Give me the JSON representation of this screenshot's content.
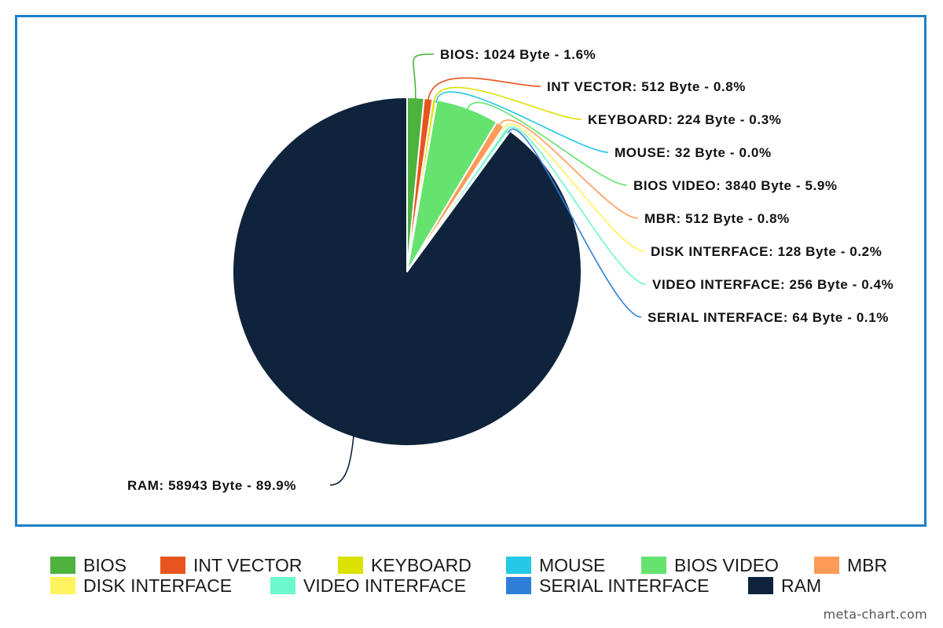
{
  "chart_data": {
    "type": "pie",
    "title": "",
    "unit": "Byte",
    "legend_position": "bottom",
    "slices": [
      {
        "name": "BIOS",
        "value": 1024,
        "percent": "1.6%",
        "label": "BIOS: 1024 Byte - 1.6%",
        "color": "#4db33d"
      },
      {
        "name": "INT VECTOR",
        "value": 512,
        "percent": "0.8%",
        "label": "INT VECTOR: 512 Byte - 0.8%",
        "color": "#e8541e"
      },
      {
        "name": "KEYBOARD",
        "value": 224,
        "percent": "0.3%",
        "label": "KEYBOARD: 224 Byte - 0.3%",
        "color": "#dde100"
      },
      {
        "name": "MOUSE",
        "value": 32,
        "percent": "0.0%",
        "label": "MOUSE: 32 Byte - 0.0%",
        "color": "#25c8e6"
      },
      {
        "name": "BIOS VIDEO",
        "value": 3840,
        "percent": "5.9%",
        "label": "BIOS VIDEO: 3840 Byte - 5.9%",
        "color": "#66e36f"
      },
      {
        "name": "MBR",
        "value": 512,
        "percent": "0.8%",
        "label": "MBR: 512 Byte - 0.8%",
        "color": "#ff9a57"
      },
      {
        "name": "DISK INTERFACE",
        "value": 128,
        "percent": "0.2%",
        "label": "DISK INTERFACE: 128 Byte - 0.2%",
        "color": "#fff25c"
      },
      {
        "name": "VIDEO INTERFACE",
        "value": 256,
        "percent": "0.4%",
        "label": "VIDEO INTERFACE: 256 Byte - 0.4%",
        "color": "#6cf7cc"
      },
      {
        "name": "SERIAL INTERFACE",
        "value": 64,
        "percent": "0.1%",
        "label": "SERIAL INTERFACE: 64 Byte - 0.1%",
        "color": "#2f7fd9"
      },
      {
        "name": "RAM",
        "value": 58943,
        "percent": "89.9%",
        "label": "RAM: 58943 Byte - 89.9%",
        "color": "#0f243c"
      }
    ]
  },
  "watermark": "meta-chart.com"
}
